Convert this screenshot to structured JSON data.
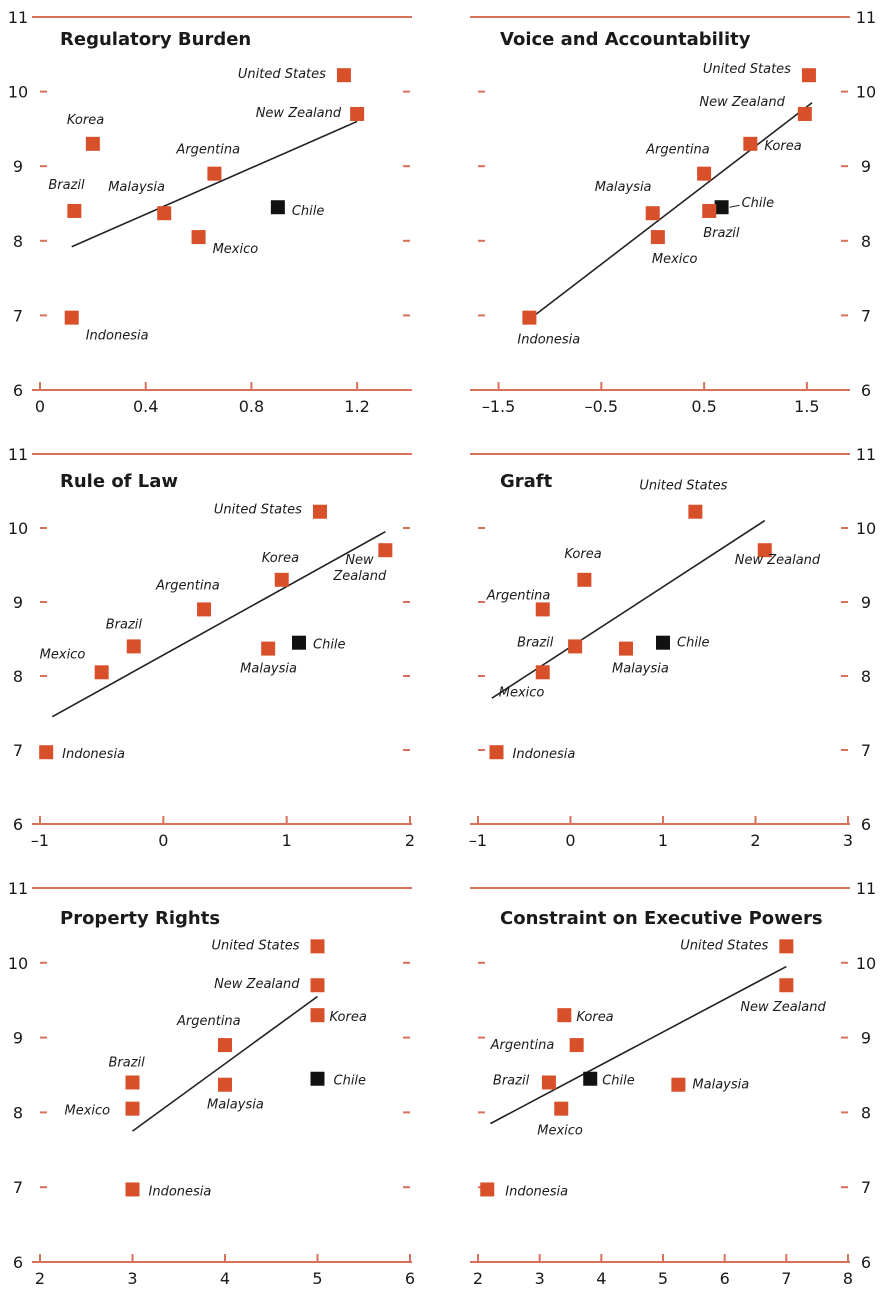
{
  "colors": {
    "axis": "#d9705a",
    "marker": "#d8502a",
    "highlight": "#111111",
    "trend": "#222222",
    "text": "#1a1a1a"
  },
  "chart_data": [
    {
      "type": "scatter",
      "title": "Regulatory Burden",
      "x_ticks": [
        "0",
        "0.4",
        "0.8",
        "1.2"
      ],
      "y_ticks": [
        "6",
        "7",
        "8",
        "9",
        "10",
        "11"
      ],
      "xlim": [
        0,
        1.4
      ],
      "ylim": [
        6,
        11
      ],
      "y_tick_side": "left",
      "trend": [
        [
          0.12,
          7.92
        ],
        [
          1.2,
          9.6
        ]
      ],
      "points": [
        {
          "name": "United States",
          "x": 1.15,
          "y": 10.22,
          "highlight": false
        },
        {
          "name": "New Zealand",
          "x": 1.2,
          "y": 9.7,
          "highlight": false
        },
        {
          "name": "Korea",
          "x": 0.2,
          "y": 9.3,
          "highlight": false
        },
        {
          "name": "Argentina",
          "x": 0.66,
          "y": 8.9,
          "highlight": false
        },
        {
          "name": "Brazil",
          "x": 0.13,
          "y": 8.4,
          "highlight": false
        },
        {
          "name": "Malaysia",
          "x": 0.47,
          "y": 8.37,
          "highlight": false
        },
        {
          "name": "Chile",
          "x": 0.9,
          "y": 8.45,
          "highlight": true
        },
        {
          "name": "Mexico",
          "x": 0.6,
          "y": 8.05,
          "highlight": false
        },
        {
          "name": "Indonesia",
          "x": 0.12,
          "y": 6.97,
          "highlight": false
        }
      ]
    },
    {
      "type": "scatter",
      "title": "Voice and Accountability",
      "x_ticks": [
        "–1.5",
        "–0.5",
        "0.5",
        "1.5"
      ],
      "y_ticks": [
        "6",
        "7",
        "8",
        "9",
        "10",
        "11"
      ],
      "xlim": [
        -1.7,
        1.9
      ],
      "ylim": [
        6,
        11
      ],
      "y_tick_side": "right",
      "trend": [
        [
          -1.15,
          7.0
        ],
        [
          1.55,
          9.85
        ]
      ],
      "points": [
        {
          "name": "United States",
          "x": 1.52,
          "y": 10.22,
          "highlight": false
        },
        {
          "name": "New Zealand",
          "x": 1.48,
          "y": 9.7,
          "highlight": false
        },
        {
          "name": "Korea",
          "x": 0.95,
          "y": 9.3,
          "highlight": false
        },
        {
          "name": "Argentina",
          "x": 0.5,
          "y": 8.9,
          "highlight": false
        },
        {
          "name": "Malaysia",
          "x": 0.0,
          "y": 8.37,
          "highlight": false
        },
        {
          "name": "Chile",
          "x": 0.67,
          "y": 8.45,
          "highlight": true
        },
        {
          "name": "Brazil",
          "x": 0.55,
          "y": 8.4,
          "highlight": false
        },
        {
          "name": "Mexico",
          "x": 0.05,
          "y": 8.05,
          "highlight": false
        },
        {
          "name": "Indonesia",
          "x": -1.2,
          "y": 6.97,
          "highlight": false
        }
      ]
    },
    {
      "type": "scatter",
      "title": "Rule of Law",
      "x_ticks": [
        "–1",
        "0",
        "1",
        "2"
      ],
      "y_ticks": [
        "6",
        "7",
        "8",
        "9",
        "10",
        "11"
      ],
      "xlim": [
        -1,
        2
      ],
      "ylim": [
        6,
        11
      ],
      "y_tick_side": "left",
      "trend": [
        [
          -0.9,
          7.45
        ],
        [
          1.8,
          9.95
        ]
      ],
      "points": [
        {
          "name": "United States",
          "x": 1.27,
          "y": 10.22,
          "highlight": false
        },
        {
          "name": "New Zealand",
          "x": 1.8,
          "y": 9.7,
          "highlight": false
        },
        {
          "name": "Korea",
          "x": 0.96,
          "y": 9.3,
          "highlight": false
        },
        {
          "name": "Argentina",
          "x": 0.33,
          "y": 8.9,
          "highlight": false
        },
        {
          "name": "Brazil",
          "x": -0.24,
          "y": 8.4,
          "highlight": false
        },
        {
          "name": "Malaysia",
          "x": 0.85,
          "y": 8.37,
          "highlight": false
        },
        {
          "name": "Chile",
          "x": 1.1,
          "y": 8.45,
          "highlight": true
        },
        {
          "name": "Mexico",
          "x": -0.5,
          "y": 8.05,
          "highlight": false
        },
        {
          "name": "Indonesia",
          "x": -0.95,
          "y": 6.97,
          "highlight": false
        }
      ]
    },
    {
      "type": "scatter",
      "title": "Graft",
      "x_ticks": [
        "–1",
        "0",
        "1",
        "2",
        "3"
      ],
      "y_ticks": [
        "6",
        "7",
        "8",
        "9",
        "10",
        "11"
      ],
      "xlim": [
        -1,
        3
      ],
      "ylim": [
        6,
        11
      ],
      "y_tick_side": "right",
      "trend": [
        [
          -0.85,
          7.7
        ],
        [
          2.1,
          10.1
        ]
      ],
      "points": [
        {
          "name": "United States",
          "x": 1.35,
          "y": 10.22,
          "highlight": false
        },
        {
          "name": "New Zealand",
          "x": 2.1,
          "y": 9.7,
          "highlight": false
        },
        {
          "name": "Korea",
          "x": 0.15,
          "y": 9.3,
          "highlight": false
        },
        {
          "name": "Argentina",
          "x": -0.3,
          "y": 8.9,
          "highlight": false
        },
        {
          "name": "Brazil",
          "x": 0.05,
          "y": 8.4,
          "highlight": false
        },
        {
          "name": "Malaysia",
          "x": 0.6,
          "y": 8.37,
          "highlight": false
        },
        {
          "name": "Chile",
          "x": 1.0,
          "y": 8.45,
          "highlight": true
        },
        {
          "name": "Mexico",
          "x": -0.3,
          "y": 8.05,
          "highlight": false
        },
        {
          "name": "Indonesia",
          "x": -0.8,
          "y": 6.97,
          "highlight": false
        }
      ]
    },
    {
      "type": "scatter",
      "title": "Property Rights",
      "x_ticks": [
        "2",
        "3",
        "4",
        "5",
        "6"
      ],
      "y_ticks": [
        "6",
        "7",
        "8",
        "9",
        "10",
        "11"
      ],
      "xlim": [
        2,
        6
      ],
      "ylim": [
        6,
        11
      ],
      "y_tick_side": "left",
      "trend": [
        [
          3.0,
          7.75
        ],
        [
          5.0,
          9.55
        ]
      ],
      "points": [
        {
          "name": "United States",
          "x": 5.0,
          "y": 10.22,
          "highlight": false
        },
        {
          "name": "New Zealand",
          "x": 5.0,
          "y": 9.7,
          "highlight": false
        },
        {
          "name": "Korea",
          "x": 5.0,
          "y": 9.3,
          "highlight": false
        },
        {
          "name": "Argentina",
          "x": 4.0,
          "y": 8.9,
          "highlight": false
        },
        {
          "name": "Brazil",
          "x": 3.0,
          "y": 8.4,
          "highlight": false
        },
        {
          "name": "Malaysia",
          "x": 4.0,
          "y": 8.37,
          "highlight": false
        },
        {
          "name": "Chile",
          "x": 5.0,
          "y": 8.45,
          "highlight": true
        },
        {
          "name": "Mexico",
          "x": 3.0,
          "y": 8.05,
          "highlight": false
        },
        {
          "name": "Indonesia",
          "x": 3.0,
          "y": 6.97,
          "highlight": false
        }
      ]
    },
    {
      "type": "scatter",
      "title": "Constraint on Executive Powers",
      "x_ticks": [
        "2",
        "3",
        "4",
        "5",
        "6",
        "7",
        "8"
      ],
      "y_ticks": [
        "6",
        "7",
        "8",
        "9",
        "10",
        "11"
      ],
      "xlim": [
        2,
        8
      ],
      "ylim": [
        6,
        11
      ],
      "y_tick_side": "right",
      "trend": [
        [
          2.2,
          7.85
        ],
        [
          7.0,
          9.95
        ]
      ],
      "points": [
        {
          "name": "United States",
          "x": 7.0,
          "y": 10.22,
          "highlight": false
        },
        {
          "name": "New Zealand",
          "x": 7.0,
          "y": 9.7,
          "highlight": false
        },
        {
          "name": "Korea",
          "x": 3.4,
          "y": 9.3,
          "highlight": false
        },
        {
          "name": "Argentina",
          "x": 3.6,
          "y": 8.9,
          "highlight": false
        },
        {
          "name": "Brazil",
          "x": 3.15,
          "y": 8.4,
          "highlight": false
        },
        {
          "name": "Chile",
          "x": 3.82,
          "y": 8.45,
          "highlight": true
        },
        {
          "name": "Malaysia",
          "x": 5.25,
          "y": 8.37,
          "highlight": false
        },
        {
          "name": "Mexico",
          "x": 3.35,
          "y": 8.05,
          "highlight": false
        },
        {
          "name": "Indonesia",
          "x": 2.15,
          "y": 6.97,
          "highlight": false
        }
      ]
    }
  ]
}
